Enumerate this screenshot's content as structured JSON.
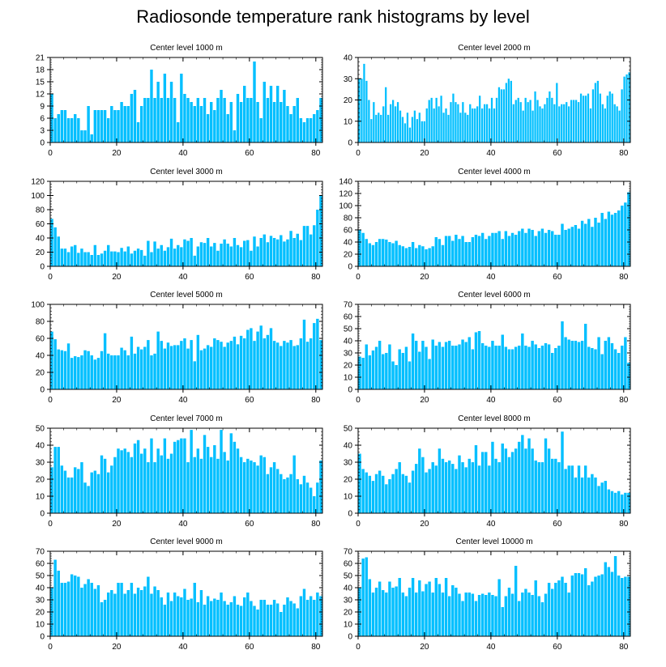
{
  "figure_title": "Radiosonde temperature rank histograms by level",
  "colors": {
    "bar": "#00BFFF",
    "axis": "#000000",
    "background": "#ffffff"
  },
  "chart_data": [
    {
      "type": "bar",
      "title": "Center level 1000 m",
      "xlabel": "",
      "ylabel": "",
      "xlim": [
        0,
        82
      ],
      "ylim": [
        0,
        21
      ],
      "xticks": [
        0,
        20,
        40,
        60,
        80
      ],
      "yticks": [
        0,
        3,
        6,
        9,
        12,
        15,
        18,
        21
      ],
      "values": [
        12,
        6,
        7,
        8,
        8,
        6,
        6,
        7,
        6,
        3,
        3,
        9,
        2,
        8,
        8,
        8,
        8,
        6,
        9,
        8,
        8,
        10,
        9,
        9,
        12,
        13,
        5,
        9,
        11,
        11,
        18,
        11,
        15,
        11,
        17,
        11,
        15,
        11,
        5,
        17,
        12,
        11,
        10,
        9,
        11,
        9,
        11,
        7,
        10,
        8,
        11,
        13,
        11,
        7,
        10,
        3,
        12,
        10,
        14,
        11,
        11,
        20,
        10,
        6,
        15,
        11,
        14,
        10,
        14,
        10,
        13,
        9,
        7,
        9,
        11,
        6,
        5,
        6,
        6,
        7,
        8,
        11
      ]
    },
    {
      "type": "bar",
      "title": "Center level 2000 m",
      "xlabel": "",
      "ylabel": "",
      "xlim": [
        0,
        82
      ],
      "ylim": [
        0,
        40
      ],
      "xticks": [
        0,
        20,
        40,
        60,
        80
      ],
      "yticks": [
        0,
        10,
        20,
        30,
        40
      ],
      "values": [
        30,
        30,
        37,
        29,
        20,
        11,
        19,
        13,
        14,
        13,
        17,
        26,
        13,
        18,
        20,
        17,
        19,
        15,
        12,
        9,
        14,
        7,
        12,
        15,
        11,
        14,
        10,
        10,
        16,
        20,
        21,
        16,
        21,
        17,
        22,
        14,
        16,
        13,
        19,
        23,
        19,
        18,
        14,
        19,
        14,
        13,
        18,
        16,
        16,
        17,
        22,
        16,
        18,
        18,
        16,
        21,
        16,
        21,
        26,
        25,
        25,
        28,
        30,
        29,
        18,
        20,
        21,
        19,
        15,
        21,
        19,
        20,
        15,
        24,
        20,
        17,
        16,
        18,
        21,
        24,
        21,
        18,
        28,
        17,
        18,
        18,
        19,
        17,
        20,
        20,
        20,
        19,
        23,
        22,
        22,
        23,
        16,
        25,
        28,
        29,
        23,
        18,
        16,
        22,
        24,
        23,
        18,
        17,
        15,
        25,
        31,
        32,
        33
      ]
    },
    {
      "type": "bar",
      "title": "Center level 3000 m",
      "xlabel": "",
      "ylabel": "",
      "xlim": [
        0,
        82
      ],
      "ylim": [
        0,
        120
      ],
      "xticks": [
        0,
        20,
        40,
        60,
        80
      ],
      "yticks": [
        0,
        20,
        40,
        60,
        80,
        100,
        120
      ],
      "values": [
        67,
        55,
        42,
        25,
        25,
        20,
        28,
        30,
        19,
        25,
        20,
        20,
        16,
        30,
        16,
        18,
        22,
        30,
        21,
        21,
        20,
        26,
        21,
        28,
        18,
        22,
        25,
        23,
        15,
        36,
        20,
        35,
        25,
        30,
        22,
        27,
        39,
        25,
        30,
        27,
        38,
        36,
        40,
        15,
        28,
        34,
        33,
        40,
        28,
        33,
        22,
        32,
        38,
        32,
        28,
        40,
        30,
        27,
        36,
        37,
        22,
        42,
        28,
        40,
        45,
        34,
        43,
        40,
        38,
        44,
        35,
        38,
        50,
        40,
        46,
        37,
        57,
        57,
        45,
        58,
        80,
        100
      ]
    },
    {
      "type": "bar",
      "title": "Center level 4000 m",
      "xlabel": "",
      "ylabel": "",
      "xlim": [
        0,
        82
      ],
      "ylim": [
        0,
        140
      ],
      "xticks": [
        0,
        20,
        40,
        60,
        80
      ],
      "yticks": [
        0,
        20,
        40,
        60,
        80,
        100,
        120,
        140
      ],
      "values": [
        60,
        55,
        45,
        38,
        35,
        40,
        45,
        45,
        44,
        40,
        38,
        42,
        35,
        33,
        30,
        32,
        40,
        30,
        35,
        33,
        28,
        30,
        33,
        48,
        45,
        35,
        50,
        50,
        42,
        52,
        45,
        50,
        40,
        40,
        48,
        52,
        50,
        55,
        45,
        50,
        55,
        55,
        58,
        45,
        58,
        50,
        55,
        52,
        58,
        62,
        55,
        62,
        60,
        50,
        58,
        62,
        55,
        60,
        58,
        52,
        52,
        70,
        60,
        62,
        65,
        68,
        62,
        75,
        70,
        78,
        65,
        80,
        72,
        88,
        78,
        90,
        85,
        88,
        92,
        100,
        105,
        122
      ]
    },
    {
      "type": "bar",
      "title": "Center level 5000 m",
      "xlabel": "",
      "ylabel": "",
      "xlim": [
        0,
        82
      ],
      "ylim": [
        0,
        100
      ],
      "xticks": [
        0,
        20,
        40,
        60,
        80
      ],
      "yticks": [
        0,
        20,
        40,
        60,
        80,
        100
      ],
      "values": [
        68,
        59,
        47,
        46,
        45,
        54,
        37,
        39,
        38,
        40,
        46,
        45,
        40,
        35,
        37,
        45,
        66,
        42,
        40,
        40,
        40,
        49,
        46,
        40,
        62,
        42,
        50,
        47,
        50,
        58,
        40,
        42,
        68,
        57,
        48,
        55,
        51,
        52,
        52,
        57,
        60,
        48,
        58,
        33,
        64,
        46,
        48,
        52,
        50,
        60,
        58,
        56,
        50,
        55,
        57,
        62,
        53,
        63,
        60,
        70,
        72,
        57,
        68,
        75,
        60,
        64,
        72,
        57,
        55,
        51,
        57,
        55,
        58,
        51,
        52,
        60,
        82,
        56,
        60,
        78,
        83,
        58
      ]
    },
    {
      "type": "bar",
      "title": "Center level 6000 m",
      "xlabel": "",
      "ylabel": "",
      "xlim": [
        0,
        82
      ],
      "ylim": [
        0,
        70
      ],
      "xticks": [
        0,
        20,
        40,
        60,
        80
      ],
      "yticks": [
        0,
        10,
        20,
        30,
        40,
        50,
        60,
        70
      ],
      "values": [
        27,
        26,
        37,
        28,
        32,
        35,
        40,
        29,
        30,
        37,
        23,
        20,
        33,
        30,
        35,
        23,
        46,
        40,
        31,
        40,
        35,
        25,
        41,
        36,
        39,
        35,
        39,
        40,
        36,
        36,
        37,
        41,
        39,
        43,
        33,
        47,
        48,
        38,
        36,
        35,
        40,
        36,
        36,
        45,
        35,
        33,
        33,
        35,
        36,
        46,
        36,
        35,
        40,
        37,
        34,
        36,
        38,
        37,
        30,
        34,
        36,
        56,
        43,
        41,
        40,
        40,
        39,
        40,
        54,
        35,
        34,
        33,
        43,
        29,
        40,
        43,
        38,
        33,
        30,
        36,
        43,
        22
      ]
    },
    {
      "type": "bar",
      "title": "Center level 7000 m",
      "xlabel": "",
      "ylabel": "",
      "xlim": [
        0,
        82
      ],
      "ylim": [
        0,
        50
      ],
      "xticks": [
        0,
        20,
        40,
        60,
        80
      ],
      "yticks": [
        0,
        10,
        20,
        30,
        40,
        50
      ],
      "values": [
        27,
        39,
        39,
        28,
        25,
        21,
        21,
        27,
        26,
        30,
        18,
        16,
        24,
        25,
        23,
        34,
        32,
        24,
        28,
        33,
        38,
        37,
        38,
        36,
        33,
        41,
        43,
        35,
        38,
        30,
        44,
        30,
        38,
        34,
        44,
        32,
        35,
        42,
        43,
        44,
        44,
        30,
        49,
        33,
        38,
        32,
        46,
        39,
        33,
        40,
        32,
        49,
        36,
        31,
        47,
        42,
        38,
        33,
        30,
        32,
        31,
        30,
        28,
        34,
        33,
        23,
        27,
        30,
        26,
        23,
        20,
        21,
        23,
        34,
        20,
        17,
        22,
        18,
        15,
        10,
        18,
        31
      ]
    },
    {
      "type": "bar",
      "title": "Center level 8000 m",
      "xlabel": "",
      "ylabel": "",
      "xlim": [
        0,
        82
      ],
      "ylim": [
        0,
        50
      ],
      "xticks": [
        0,
        20,
        40,
        60,
        80
      ],
      "yticks": [
        0,
        10,
        20,
        30,
        40,
        50
      ],
      "values": [
        35,
        26,
        24,
        22,
        19,
        23,
        25,
        22,
        17,
        20,
        23,
        26,
        30,
        23,
        22,
        18,
        25,
        29,
        38,
        33,
        24,
        26,
        30,
        28,
        38,
        32,
        30,
        31,
        29,
        26,
        34,
        30,
        27,
        32,
        30,
        40,
        28,
        36,
        36,
        28,
        42,
        32,
        30,
        41,
        38,
        33,
        36,
        38,
        42,
        46,
        38,
        44,
        38,
        31,
        30,
        30,
        44,
        38,
        32,
        32,
        30,
        48,
        26,
        28,
        28,
        21,
        28,
        21,
        28,
        21,
        23,
        21,
        16,
        18,
        19,
        14,
        13,
        12,
        13,
        11,
        12,
        12
      ]
    },
    {
      "type": "bar",
      "title": "Center level 9000 m",
      "xlabel": "",
      "ylabel": "",
      "xlim": [
        0,
        82
      ],
      "ylim": [
        0,
        70
      ],
      "xticks": [
        0,
        20,
        40,
        60,
        80
      ],
      "yticks": [
        0,
        10,
        20,
        30,
        40,
        50,
        60,
        70
      ],
      "values": [
        40,
        63,
        54,
        44,
        44,
        45,
        51,
        50,
        49,
        40,
        43,
        47,
        44,
        39,
        42,
        28,
        30,
        36,
        38,
        35,
        44,
        44,
        35,
        38,
        44,
        35,
        40,
        38,
        41,
        49,
        35,
        41,
        38,
        32,
        26,
        36,
        29,
        36,
        33,
        32,
        39,
        30,
        31,
        44,
        28,
        38,
        26,
        33,
        29,
        31,
        30,
        36,
        29,
        26,
        28,
        33,
        26,
        25,
        32,
        36,
        29,
        25,
        22,
        30,
        30,
        26,
        26,
        30,
        27,
        20,
        26,
        32,
        29,
        27,
        23,
        33,
        39,
        30,
        33,
        30,
        36,
        33
      ]
    },
    {
      "type": "bar",
      "title": "Center level 10000 m",
      "xlabel": "",
      "ylabel": "",
      "xlim": [
        0,
        82
      ],
      "ylim": [
        0,
        70
      ],
      "xticks": [
        0,
        20,
        40,
        60,
        80
      ],
      "yticks": [
        0,
        10,
        20,
        30,
        40,
        50,
        60,
        70
      ],
      "values": [
        40,
        64,
        65,
        47,
        36,
        40,
        45,
        38,
        36,
        45,
        40,
        41,
        48,
        36,
        33,
        40,
        48,
        36,
        46,
        37,
        43,
        45,
        36,
        48,
        43,
        36,
        48,
        33,
        42,
        40,
        35,
        29,
        36,
        36,
        35,
        29,
        34,
        35,
        34,
        36,
        34,
        33,
        47,
        24,
        33,
        40,
        35,
        58,
        29,
        36,
        39,
        36,
        34,
        46,
        33,
        28,
        35,
        44,
        39,
        44,
        46,
        49,
        44,
        36,
        50,
        52,
        52,
        51,
        56,
        42,
        45,
        49,
        50,
        51,
        61,
        57,
        53,
        66,
        50,
        48,
        49,
        49
      ]
    }
  ]
}
